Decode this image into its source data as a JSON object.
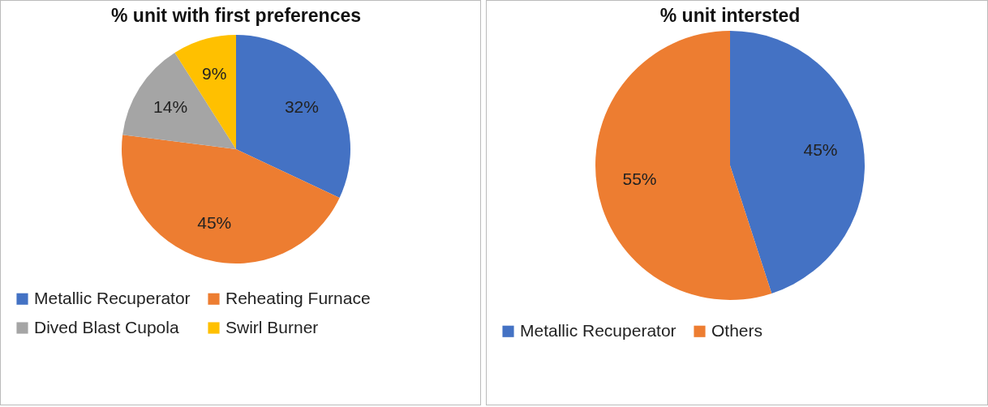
{
  "chart_data": [
    {
      "type": "pie",
      "title": "% unit with first preferences",
      "categories": [
        "Metallic Recuperator",
        "Reheating Furnace",
        "Dived Blast Cupola",
        "Swirl Burner"
      ],
      "values": [
        32,
        45,
        14,
        9
      ],
      "colors": [
        "#4472c4",
        "#ed7d31",
        "#a5a5a5",
        "#ffc000"
      ],
      "value_labels": [
        "32%",
        "45%",
        "14%",
        "9%"
      ],
      "legend": "bottom"
    },
    {
      "type": "pie",
      "title": "% unit intersted",
      "categories": [
        "Metallic Recuperator",
        "Others"
      ],
      "values": [
        45,
        55
      ],
      "colors": [
        "#4472c4",
        "#ed7d31"
      ],
      "value_labels": [
        "45%",
        "55%"
      ],
      "legend": "bottom"
    }
  ]
}
